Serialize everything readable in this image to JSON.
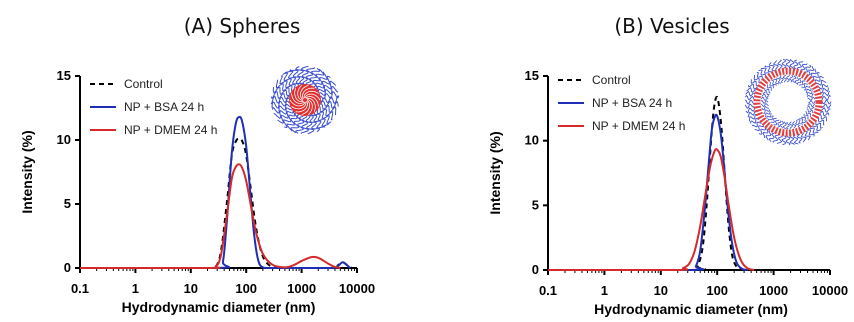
{
  "chart_data": [
    {
      "type": "line",
      "title": "(A) Spheres",
      "xlabel": "Hydrodynamic diameter (nm)",
      "ylabel": "Intensity (%)",
      "xscale": "log",
      "xlim": [
        0.1,
        10000
      ],
      "ylim": [
        0,
        15
      ],
      "xticks": [
        "0.1",
        "1",
        "10",
        "100",
        "1000",
        "10000"
      ],
      "yticks": [
        "0",
        "5",
        "10",
        "15"
      ],
      "legend_position": "top-left",
      "inset": "spherical micelle illustration (red core, blue corona)",
      "series": [
        {
          "name": "Control",
          "color": "#000000",
          "dash": true,
          "x": [
            0.1,
            20,
            28,
            35,
            45,
            55,
            65,
            75,
            85,
            100,
            120,
            150,
            200,
            300,
            500,
            3500,
            4500,
            5500,
            6500,
            8000
          ],
          "y": [
            0,
            0,
            0.1,
            1.3,
            5.2,
            8.8,
            9.9,
            10.1,
            9.9,
            8.8,
            6.3,
            3.2,
            0.9,
            0.05,
            0,
            0,
            0.2,
            0.45,
            0.25,
            0
          ]
        },
        {
          "name": "NP + BSA 24 h",
          "color": "#1f2fb5",
          "dash": false,
          "x": [
            0.1,
            30,
            38,
            45,
            55,
            65,
            75,
            85,
            100,
            120,
            140,
            165,
            200,
            300,
            3500,
            4500,
            5500,
            6500,
            7500
          ],
          "y": [
            0,
            0,
            0.5,
            3.8,
            9.0,
            11.3,
            11.8,
            11.4,
            9.5,
            5.6,
            2.5,
            0.6,
            0.05,
            0,
            0,
            0.15,
            0.45,
            0.25,
            0
          ]
        },
        {
          "name": "NP + DMEM 24 h",
          "color": "#d42a2a",
          "dash": false,
          "x": [
            0.1,
            20,
            28,
            35,
            45,
            55,
            65,
            75,
            85,
            100,
            120,
            150,
            200,
            300,
            500,
            700,
            1000,
            1500,
            2000,
            3000,
            4000,
            5000
          ],
          "y": [
            0,
            0,
            0.1,
            1.0,
            4.2,
            7.0,
            7.9,
            8.1,
            7.8,
            6.8,
            5.0,
            2.8,
            1.1,
            0.25,
            0.05,
            0.2,
            0.55,
            0.85,
            0.8,
            0.35,
            0.08,
            0
          ]
        }
      ]
    },
    {
      "type": "line",
      "title": "(B) Vesicles",
      "xlabel": "Hydrodynamic diameter (nm)",
      "ylabel": "Intensity (%)",
      "xscale": "log",
      "xlim": [
        0.1,
        10000
      ],
      "ylim": [
        0,
        15
      ],
      "xticks": [
        "0.1",
        "1",
        "10",
        "100",
        "1000",
        "10000"
      ],
      "yticks": [
        "0",
        "5",
        "10",
        "15"
      ],
      "legend_position": "top-left",
      "inset": "vesicle illustration (bilayer ring, red inner, blue outer)",
      "series": [
        {
          "name": "Control",
          "color": "#000000",
          "dash": true,
          "x": [
            0.1,
            38,
            45,
            55,
            65,
            75,
            85,
            95,
            105,
            120,
            140,
            160,
            185,
            220,
            260,
            310
          ],
          "y": [
            0,
            0,
            0.3,
            1.7,
            5.0,
            9.0,
            12.0,
            13.3,
            13.0,
            10.8,
            6.6,
            3.3,
            1.1,
            0.25,
            0.05,
            0
          ]
        },
        {
          "name": "NP + BSA 24 h",
          "color": "#1f2fb5",
          "dash": false,
          "x": [
            0.1,
            35,
            42,
            50,
            60,
            70,
            80,
            90,
            100,
            115,
            130,
            150,
            180,
            220,
            280,
            350
          ],
          "y": [
            0,
            0,
            0.3,
            1.5,
            4.6,
            8.0,
            10.8,
            11.8,
            11.9,
            10.6,
            8.4,
            5.3,
            2.3,
            0.6,
            0.08,
            0
          ]
        },
        {
          "name": "NP + DMEM 24 h",
          "color": "#d42a2a",
          "dash": false,
          "x": [
            0.1,
            18,
            25,
            32,
            40,
            50,
            60,
            75,
            90,
            100,
            115,
            135,
            160,
            200,
            260,
            340,
            450
          ],
          "y": [
            0,
            0,
            0.15,
            0.5,
            1.5,
            3.4,
            5.5,
            8.0,
            9.2,
            9.3,
            8.8,
            7.2,
            5.0,
            2.5,
            0.8,
            0.15,
            0
          ]
        }
      ]
    }
  ]
}
